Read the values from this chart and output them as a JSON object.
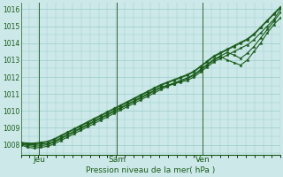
{
  "xlabel": "Pression niveau de la mer( hPa )",
  "bg_color": "#cce8e8",
  "grid_color": "#99cccc",
  "line_color": "#1a5c1a",
  "vline_color": "#336633",
  "ylim": [
    1007.4,
    1016.4
  ],
  "yticks": [
    1008,
    1009,
    1010,
    1011,
    1012,
    1013,
    1014,
    1015,
    1016
  ],
  "xlim": [
    0.0,
    1.0
  ],
  "day_labels": [
    "Jeu",
    "Sam",
    "Ven"
  ],
  "day_positions": [
    0.07,
    0.37,
    0.7
  ],
  "num_steps": 40,
  "lines": [
    [
      1008.1,
      1008.0,
      1008.0,
      1008.05,
      1008.05,
      1008.2,
      1008.4,
      1008.6,
      1008.8,
      1009.0,
      1009.2,
      1009.4,
      1009.6,
      1009.8,
      1010.0,
      1010.2,
      1010.4,
      1010.6,
      1010.8,
      1011.0,
      1011.2,
      1011.4,
      1011.5,
      1011.6,
      1011.7,
      1011.8,
      1012.0,
      1012.3,
      1012.6,
      1012.9,
      1013.1,
      1013.3,
      1013.5,
      1013.7,
      1013.9,
      1014.2,
      1014.6,
      1015.0,
      1015.4,
      1016.0
    ],
    [
      1008.05,
      1007.95,
      1007.9,
      1007.95,
      1008.0,
      1008.15,
      1008.35,
      1008.55,
      1008.75,
      1008.95,
      1009.15,
      1009.35,
      1009.55,
      1009.75,
      1009.95,
      1010.15,
      1010.35,
      1010.55,
      1010.75,
      1010.95,
      1011.15,
      1011.35,
      1011.5,
      1011.65,
      1011.8,
      1011.95,
      1012.15,
      1012.45,
      1012.75,
      1013.05,
      1013.25,
      1013.45,
      1013.3,
      1013.1,
      1013.4,
      1013.8,
      1014.3,
      1014.8,
      1015.3,
      1015.8
    ],
    [
      1008.0,
      1007.85,
      1007.8,
      1007.85,
      1007.9,
      1008.05,
      1008.25,
      1008.45,
      1008.65,
      1008.85,
      1009.05,
      1009.25,
      1009.45,
      1009.65,
      1009.85,
      1010.05,
      1010.25,
      1010.45,
      1010.65,
      1010.85,
      1011.05,
      1011.25,
      1011.45,
      1011.6,
      1011.75,
      1011.9,
      1012.1,
      1012.4,
      1012.7,
      1013.0,
      1013.2,
      1013.0,
      1012.85,
      1012.7,
      1013.0,
      1013.5,
      1014.0,
      1014.6,
      1015.1,
      1015.5
    ],
    [
      1008.1,
      1008.05,
      1008.05,
      1008.1,
      1008.15,
      1008.3,
      1008.5,
      1008.7,
      1008.9,
      1009.1,
      1009.3,
      1009.5,
      1009.7,
      1009.9,
      1010.1,
      1010.3,
      1010.5,
      1010.7,
      1010.9,
      1011.1,
      1011.3,
      1011.5,
      1011.65,
      1011.8,
      1011.95,
      1012.1,
      1012.3,
      1012.6,
      1012.9,
      1013.2,
      1013.4,
      1013.6,
      1013.8,
      1014.0,
      1014.2,
      1014.5,
      1014.9,
      1015.3,
      1015.7,
      1016.1
    ],
    [
      1008.15,
      1008.1,
      1008.1,
      1008.15,
      1008.2,
      1008.35,
      1008.55,
      1008.75,
      1008.95,
      1009.15,
      1009.35,
      1009.55,
      1009.75,
      1009.95,
      1010.15,
      1010.35,
      1010.55,
      1010.75,
      1010.95,
      1011.15,
      1011.35,
      1011.55,
      1011.7,
      1011.85,
      1012.0,
      1012.15,
      1012.35,
      1012.65,
      1012.95,
      1013.25,
      1013.45,
      1013.65,
      1013.85,
      1014.05,
      1014.25,
      1014.55,
      1014.95,
      1015.35,
      1015.75,
      1016.15
    ]
  ]
}
